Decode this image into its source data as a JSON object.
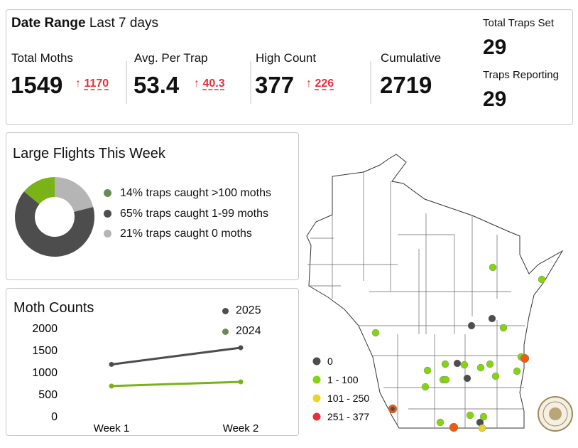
{
  "summary": {
    "date_range_label": "Date Range",
    "date_range_value": "Last 7 days",
    "metrics": [
      {
        "label": "Total Moths",
        "value": "1549",
        "arrow": "↑",
        "change": "1170"
      },
      {
        "label": "Avg. Per Trap",
        "value": "53.4",
        "arrow": "↑",
        "change": "40.3"
      },
      {
        "label": "High Count",
        "value": "377",
        "arrow": "↑",
        "change": "226"
      },
      {
        "label": "Cumulative",
        "value": "2719"
      }
    ],
    "traps_set_label": "Total Traps Set",
    "traps_set_value": "29",
    "traps_reporting_label": "Traps Reporting",
    "traps_reporting_value": "29"
  },
  "flights": {
    "title": "Large Flights This Week",
    "slices": [
      {
        "label": "21% traps caught 0 moths",
        "percent": 21,
        "color": "#b5b5b5",
        "legend_color": "#b5b5b5"
      },
      {
        "label": "65% traps caught 1-99 moths",
        "percent": 65,
        "color": "#4d4d4d",
        "legend_color": "#4d4d4d"
      },
      {
        "label": "14% traps caught >100 moths",
        "percent": 14,
        "color": "#7ab317",
        "legend_color": "#6a8a55"
      }
    ]
  },
  "chart_data": {
    "type": "line",
    "title": "Moth Counts",
    "categories": [
      "Week 1",
      "Week 2"
    ],
    "ylim": [
      0,
      2000
    ],
    "yticks": [
      "0",
      "500",
      "1000",
      "1500",
      "2000"
    ],
    "legend": "top-right",
    "grid": false,
    "series": [
      {
        "name": "2025",
        "values": [
          1170,
          1549
        ],
        "color": "#4d4d4d",
        "legend_color": "#4d4d4d"
      },
      {
        "name": "2024",
        "values": [
          680,
          775
        ],
        "color": "#7ab317",
        "legend_color": "#6a8a55"
      }
    ]
  },
  "map": {
    "legend": [
      {
        "label": "0",
        "color": "#4d4d4d"
      },
      {
        "label": "1 - 100",
        "color": "#84d40f"
      },
      {
        "label": "101 - 250",
        "color": "#e8d528"
      },
      {
        "label": "251 - 377",
        "color": "#ee2e3a"
      }
    ]
  }
}
